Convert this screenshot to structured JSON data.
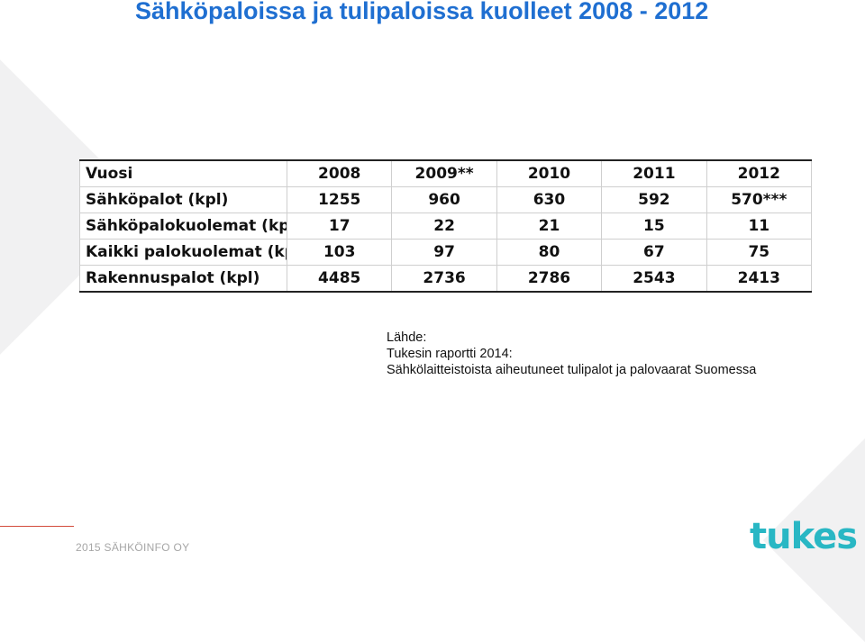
{
  "title": "Sähköpaloissa ja tulipaloissa kuolleet 2008 - 2012",
  "table": {
    "headers": [
      "Vuosi",
      "2008",
      "2009**",
      "2010",
      "2011",
      "2012"
    ],
    "rows": [
      {
        "label": "Sähköpalot (kpl)",
        "values": [
          "1255",
          "960",
          "630",
          "592",
          "570***"
        ]
      },
      {
        "label": "Sähköpalokuolemat (kpl)",
        "values": [
          "17",
          "22",
          "21",
          "15",
          "11"
        ]
      },
      {
        "label": "Kaikki palokuolemat (kpl)",
        "values": [
          "103",
          "97",
          "80",
          "67",
          "75"
        ]
      },
      {
        "label": "Rakennuspalot (kpl)",
        "values": [
          "4485",
          "2736",
          "2786",
          "2543",
          "2413"
        ]
      }
    ]
  },
  "source": {
    "line1": "Lähde:",
    "line2": "Tukesin raportti 2014:",
    "line3": "Sähkölaitteistoista aiheutuneet tulipalot ja palovaarat Suomessa"
  },
  "footer": {
    "text": "2015 SÄHKÖINFO OY"
  },
  "logo": {
    "text": "tukes"
  },
  "colors": {
    "title": "#1f6fd1",
    "logo": "#29b7c4",
    "accent_line": "#d34b3b"
  }
}
